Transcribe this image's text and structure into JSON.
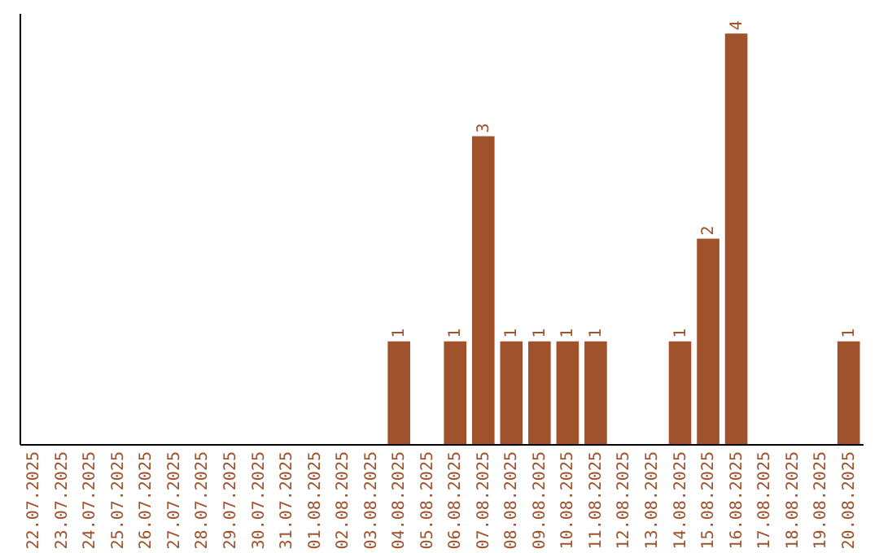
{
  "chart_data": {
    "type": "bar",
    "categories": [
      "22.07.2025",
      "23.07.2025",
      "24.07.2025",
      "25.07.2025",
      "26.07.2025",
      "27.07.2025",
      "28.07.2025",
      "29.07.2025",
      "30.07.2025",
      "31.07.2025",
      "01.08.2025",
      "02.08.2025",
      "03.08.2025",
      "04.08.2025",
      "05.08.2025",
      "06.08.2025",
      "07.08.2025",
      "08.08.2025",
      "09.08.2025",
      "10.08.2025",
      "11.08.2025",
      "12.08.2025",
      "13.08.2025",
      "14.08.2025",
      "15.08.2025",
      "16.08.2025",
      "17.08.2025",
      "18.08.2025",
      "19.08.2025",
      "20.08.2025"
    ],
    "values": [
      null,
      null,
      null,
      null,
      null,
      null,
      null,
      null,
      null,
      null,
      null,
      null,
      null,
      1,
      null,
      1,
      3,
      1,
      1,
      1,
      1,
      null,
      null,
      1,
      2,
      4,
      null,
      null,
      null,
      1
    ],
    "data_labels": true,
    "color": "#a0522d"
  }
}
